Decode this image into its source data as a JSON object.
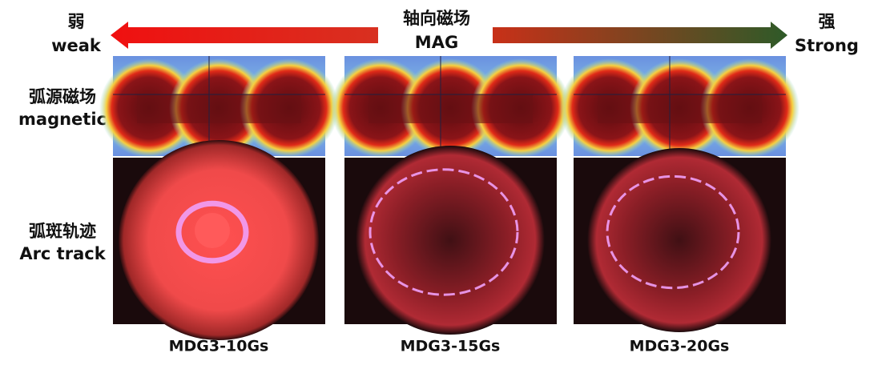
{
  "header": {
    "weak_cn": "弱",
    "weak": "weak",
    "center_cn": "轴向磁场",
    "center": "MAG",
    "strong_cn": "强",
    "strong": "Strong"
  },
  "rows": [
    {
      "cn": "弧源磁场",
      "en": "magnetic"
    },
    {
      "cn": "弧斑轨迹",
      "en": "Arc track"
    }
  ],
  "panels": [
    {
      "caption": "MDG3-10Gs"
    },
    {
      "caption": "MDG3-15Gs"
    },
    {
      "caption": "MDG3-20Gs"
    }
  ]
}
